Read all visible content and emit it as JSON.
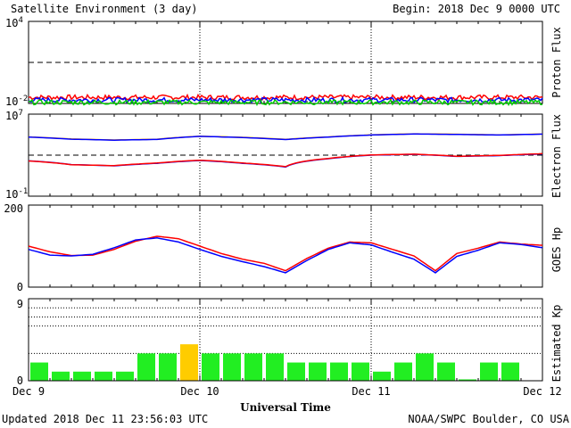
{
  "header": {
    "title": "Satellite Environment (3 day)",
    "begin": "Begin:  2018 Dec 9 0000 UTC"
  },
  "footer": {
    "updated": "Updated 2018 Dec 11 23:56:03 UTC",
    "credit": "NOAA/SWPC Boulder, CO USA"
  },
  "chart_data": [
    {
      "type": "line",
      "ylabel": "Proton Flux",
      "yscale": "log",
      "ylim": [
        0.01,
        10000
      ],
      "yticks": [
        {
          "base": "10",
          "exp": "4"
        },
        {
          "base": "10",
          "exp": "-2"
        }
      ],
      "threshold": 10,
      "series": [
        {
          "color": "#ff0000",
          "level": 0.028
        },
        {
          "color": "#0000ff",
          "level": 0.018
        },
        {
          "color": "#00cc00",
          "level": 0.012
        }
      ]
    },
    {
      "type": "line",
      "ylabel": "Electron Flux",
      "yscale": "log",
      "ylim": [
        0.1,
        10000000
      ],
      "yticks": [
        {
          "base": "10",
          "exp": "7"
        },
        {
          "base": "10",
          "exp": "-1"
        }
      ],
      "threshold": 1000,
      "x": [
        0,
        6,
        12,
        18,
        24,
        30,
        36,
        42,
        48,
        54,
        60,
        66,
        72
      ],
      "series": [
        {
          "color": "#ffa500",
          "values": [
            60000,
            38000,
            30000,
            36000,
            70000,
            55000,
            35000,
            60000,
            95000,
            120000,
            110000,
            95000,
            115000
          ]
        },
        {
          "color": "#0000ff",
          "values": [
            58000,
            36000,
            29000,
            34000,
            68000,
            52000,
            33000,
            58000,
            92000,
            115000,
            105000,
            92000,
            112000
          ]
        },
        {
          "color": "#0000ff",
          "values": [
            280,
            120,
            90,
            160,
            300,
            160,
            70,
            450,
            1000,
            1200,
            750,
            900,
            1300
          ]
        },
        {
          "color": "#ff0000",
          "values": [
            270,
            115,
            95,
            170,
            320,
            170,
            75,
            470,
            1050,
            1250,
            780,
            950,
            1400
          ]
        }
      ]
    },
    {
      "type": "line",
      "ylabel": "GOES Hp",
      "ylim": [
        0,
        200
      ],
      "yticks": [
        "200",
        "0"
      ],
      "x": [
        0,
        3,
        6,
        9,
        12,
        15,
        18,
        21,
        24,
        27,
        30,
        33,
        36,
        39,
        42,
        45,
        48,
        51,
        54,
        57,
        60,
        63,
        66,
        69,
        72
      ],
      "series": [
        {
          "color": "#ff0000",
          "values": [
            100,
            86,
            77,
            78,
            92,
            112,
            124,
            118,
            100,
            82,
            68,
            58,
            40,
            70,
            95,
            110,
            108,
            92,
            76,
            40,
            82,
            95,
            110,
            105,
            102
          ]
        },
        {
          "color": "#0000ff",
          "values": [
            92,
            78,
            76,
            80,
            96,
            115,
            120,
            110,
            92,
            75,
            62,
            50,
            35,
            65,
            92,
            108,
            103,
            85,
            68,
            35,
            75,
            90,
            108,
            104,
            96
          ]
        }
      ]
    },
    {
      "type": "bar",
      "ylabel": "Estimated Kp",
      "ylim": [
        0,
        9
      ],
      "yticks": [
        "9",
        "0"
      ],
      "values": [
        2,
        1,
        1,
        1,
        1,
        3,
        3,
        4,
        3,
        3,
        3,
        3,
        2,
        2,
        2,
        2,
        1,
        2,
        3,
        2,
        0,
        2,
        2
      ],
      "colors": {
        "quiet": "#22ee22",
        "active": "#ffcc00"
      }
    }
  ],
  "xaxis": {
    "label": "Universal Time",
    "ticks": [
      "Dec 9",
      "Dec 10",
      "Dec 11",
      "Dec 12"
    ]
  },
  "ylabels": [
    "Proton Flux",
    "Electron Flux",
    "GOES Hp",
    "Estimated Kp"
  ]
}
